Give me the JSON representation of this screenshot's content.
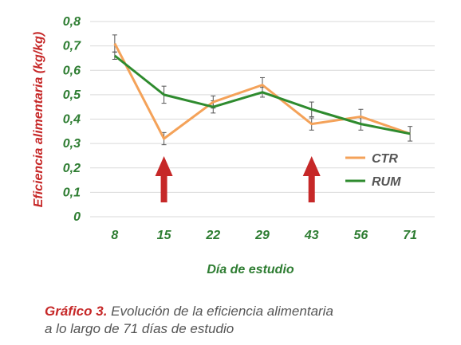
{
  "chart_data": {
    "type": "line",
    "categories": [
      "8",
      "15",
      "22",
      "29",
      "43",
      "56",
      "71"
    ],
    "series": [
      {
        "name": "CTR",
        "color": "#f4a259",
        "values": [
          0.71,
          0.32,
          0.47,
          0.54,
          0.38,
          0.41,
          0.34
        ],
        "errors": [
          0.035,
          0.025,
          0.025,
          0.03,
          0.025,
          0.03,
          null
        ]
      },
      {
        "name": "RUM",
        "color": "#2e8b2e",
        "values": [
          0.66,
          0.5,
          0.45,
          0.51,
          0.44,
          0.38,
          0.34
        ],
        "errors": [
          0.015,
          0.035,
          0.025,
          0.02,
          0.03,
          0.025,
          0.03
        ]
      }
    ],
    "ylabel": "Eficiencia alimentaria (kg/kg)",
    "xlabel": "Día de estudio",
    "ylim": [
      0,
      0.8
    ],
    "yticks": [
      "0",
      "0,1",
      "0,2",
      "0,3",
      "0,4",
      "0,5",
      "0,6",
      "0,7",
      "0,8"
    ],
    "grid": true,
    "legend_position": "right",
    "arrows_at": [
      "15",
      "43"
    ],
    "arrow_color": "#c62828",
    "axis_text_color": "#2e7d32"
  },
  "caption": {
    "lead": "Gráfico 3.",
    "line1": " Evolución de la eficiencia alimentaria",
    "line2": "a lo largo de 71 días de estudio"
  }
}
